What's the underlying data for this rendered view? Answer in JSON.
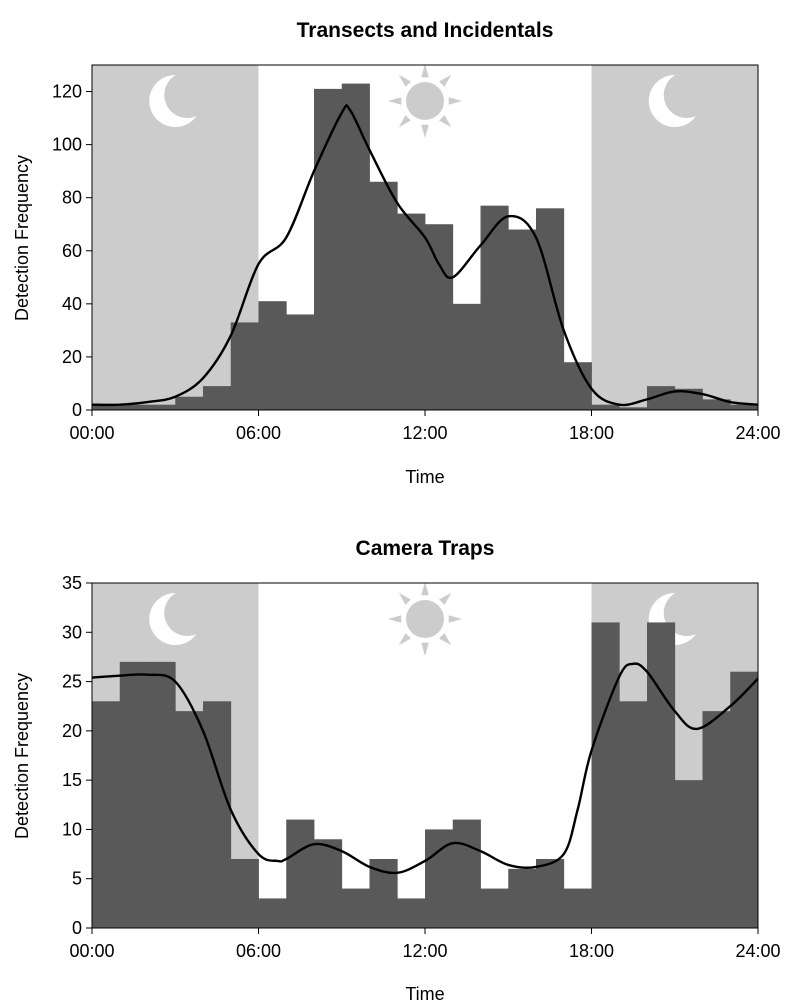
{
  "chart_data": [
    {
      "type": "bar",
      "title": "Transects and Incidentals",
      "xlabel": "Time",
      "ylabel": "Detection Frequency",
      "xlim": [
        0,
        24
      ],
      "ylim": [
        0,
        130
      ],
      "x_ticks": [
        "00:00",
        "06:00",
        "12:00",
        "18:00",
        "24:00"
      ],
      "y_ticks": [
        0,
        20,
        40,
        60,
        80,
        100,
        120
      ],
      "night_shading": [
        [
          0,
          6
        ],
        [
          18,
          24
        ]
      ],
      "night_color": "#cccccc",
      "bar_color": "#595959",
      "hour_bins": [
        0,
        1,
        2,
        3,
        4,
        5,
        6,
        7,
        8,
        9,
        10,
        11,
        12,
        13,
        14,
        15,
        16,
        17,
        18,
        19,
        20,
        21,
        22,
        23
      ],
      "values": [
        2,
        2,
        2,
        5,
        9,
        33,
        41,
        36,
        121,
        123,
        86,
        74,
        70,
        40,
        77,
        68,
        76,
        18,
        2,
        1,
        9,
        8,
        4,
        2
      ],
      "density_curve": {
        "x": [
          0,
          1,
          2,
          3,
          4,
          5,
          6,
          7,
          8,
          9,
          9.3,
          10,
          11,
          12,
          12.5,
          13,
          14,
          15,
          16,
          17,
          18,
          19,
          20,
          21,
          22,
          23,
          24
        ],
        "y": [
          2,
          2,
          3,
          5,
          12,
          28,
          55,
          65,
          90,
          112,
          113,
          98,
          78,
          65,
          55,
          50,
          62,
          73,
          65,
          30,
          8,
          2,
          4,
          7,
          6,
          3,
          2
        ]
      }
    },
    {
      "type": "bar",
      "title": "Camera Traps",
      "xlabel": "Time",
      "ylabel": "Detection Frequency",
      "xlim": [
        0,
        24
      ],
      "ylim": [
        0,
        35
      ],
      "x_ticks": [
        "00:00",
        "06:00",
        "12:00",
        "18:00",
        "24:00"
      ],
      "y_ticks": [
        0,
        5,
        10,
        15,
        20,
        25,
        30,
        35
      ],
      "night_shading": [
        [
          0,
          6
        ],
        [
          18,
          24
        ]
      ],
      "night_color": "#cccccc",
      "bar_color": "#595959",
      "hour_bins": [
        0,
        1,
        2,
        3,
        4,
        5,
        6,
        7,
        8,
        9,
        10,
        11,
        12,
        13,
        14,
        15,
        16,
        17,
        18,
        19,
        20,
        21,
        22,
        23
      ],
      "values": [
        23,
        27,
        27,
        22,
        23,
        7,
        3,
        11,
        9,
        4,
        7,
        3,
        10,
        11,
        4,
        6,
        7,
        4,
        31,
        23,
        31,
        15,
        22,
        26
      ],
      "density_curve": {
        "x": [
          0,
          1,
          2,
          3,
          4,
          5,
          6,
          6.7,
          7,
          8,
          9,
          10,
          11,
          12,
          13,
          14,
          15,
          16,
          17,
          17.5,
          18,
          19,
          19.5,
          20,
          21,
          21.8,
          23,
          24
        ],
        "y": [
          25.4,
          25.6,
          25.7,
          25,
          20,
          12,
          7.5,
          6.8,
          7,
          8.5,
          7.8,
          6.2,
          5.6,
          6.8,
          8.6,
          7.8,
          6.4,
          6.2,
          7.5,
          12,
          18,
          25.5,
          26.8,
          26,
          22,
          20.2,
          22.5,
          25.3
        ]
      }
    }
  ]
}
